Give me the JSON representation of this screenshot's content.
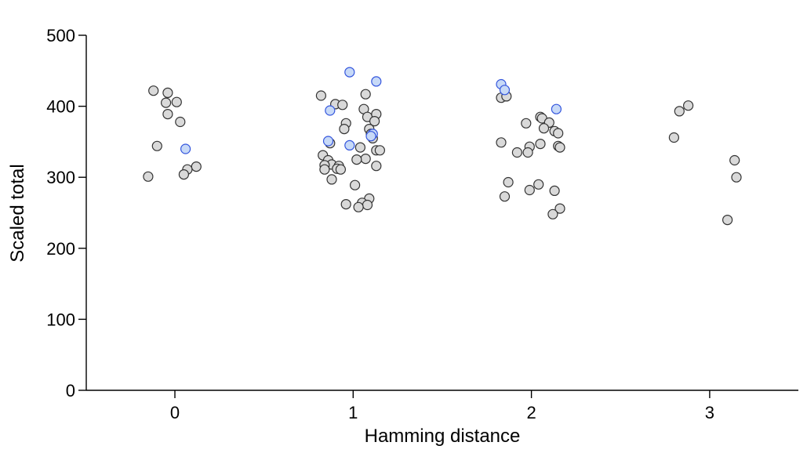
{
  "chart_data": {
    "type": "scatter",
    "title": "",
    "xlabel": "Hamming distance",
    "ylabel": "Scaled total",
    "xlim": [
      -0.6,
      3.5
    ],
    "ylim": [
      0,
      500
    ],
    "x_ticks": [
      0,
      1,
      2,
      3
    ],
    "y_ticks": [
      0,
      100,
      200,
      300,
      400,
      500
    ],
    "grid": false,
    "legend": "none",
    "colors": {
      "gray": "#d9d9d9",
      "blue": "#c7d9f7",
      "blue_edge": "#3355dd",
      "edge": "#333333"
    },
    "series": [
      {
        "color": "gray",
        "points": [
          [
            -0.12,
            422
          ],
          [
            -0.04,
            419
          ],
          [
            -0.05,
            405
          ],
          [
            0.01,
            406
          ],
          [
            -0.04,
            389
          ],
          [
            0.03,
            378
          ],
          [
            -0.1,
            344
          ],
          [
            0.12,
            315
          ],
          [
            0.07,
            311
          ],
          [
            0.05,
            304
          ],
          [
            -0.15,
            301
          ],
          [
            0.82,
            415
          ],
          [
            0.9,
            403
          ],
          [
            0.94,
            402
          ],
          [
            1.07,
            417
          ],
          [
            1.06,
            396
          ],
          [
            1.08,
            385
          ],
          [
            1.13,
            389
          ],
          [
            1.12,
            379
          ],
          [
            0.96,
            376
          ],
          [
            0.95,
            368
          ],
          [
            1.09,
            368
          ],
          [
            1.1,
            361
          ],
          [
            1.11,
            355
          ],
          [
            0.87,
            348
          ],
          [
            1.04,
            342
          ],
          [
            1.13,
            338
          ],
          [
            1.15,
            338
          ],
          [
            0.83,
            331
          ],
          [
            1.07,
            326
          ],
          [
            1.02,
            325
          ],
          [
            0.86,
            324
          ],
          [
            0.88,
            318
          ],
          [
            0.84,
            317
          ],
          [
            0.92,
            316
          ],
          [
            0.91,
            312
          ],
          [
            0.93,
            311
          ],
          [
            0.84,
            311
          ],
          [
            1.13,
            316
          ],
          [
            0.88,
            297
          ],
          [
            1.01,
            289
          ],
          [
            1.09,
            270
          ],
          [
            1.05,
            264
          ],
          [
            0.96,
            262
          ],
          [
            1.08,
            261
          ],
          [
            1.03,
            258
          ],
          [
            1.83,
            412
          ],
          [
            1.86,
            414
          ],
          [
            1.97,
            376
          ],
          [
            2.05,
            385
          ],
          [
            2.06,
            383
          ],
          [
            2.1,
            377
          ],
          [
            2.07,
            369
          ],
          [
            2.13,
            365
          ],
          [
            2.15,
            362
          ],
          [
            1.83,
            349
          ],
          [
            2.05,
            347
          ],
          [
            2.15,
            344
          ],
          [
            2.16,
            342
          ],
          [
            1.99,
            343
          ],
          [
            1.92,
            335
          ],
          [
            1.98,
            335
          ],
          [
            1.87,
            293
          ],
          [
            2.04,
            290
          ],
          [
            1.99,
            282
          ],
          [
            2.13,
            281
          ],
          [
            1.85,
            273
          ],
          [
            2.16,
            256
          ],
          [
            2.12,
            248
          ],
          [
            2.88,
            401
          ],
          [
            2.83,
            393
          ],
          [
            2.8,
            356
          ],
          [
            3.14,
            324
          ],
          [
            3.15,
            300
          ],
          [
            3.1,
            240
          ]
        ]
      },
      {
        "color": "blue",
        "points": [
          [
            0.06,
            340
          ],
          [
            0.98,
            448
          ],
          [
            1.13,
            435
          ],
          [
            0.87,
            394
          ],
          [
            1.11,
            361
          ],
          [
            1.1,
            358
          ],
          [
            0.86,
            351
          ],
          [
            0.98,
            345
          ],
          [
            1.83,
            431
          ],
          [
            1.85,
            423
          ],
          [
            2.14,
            396
          ]
        ]
      }
    ]
  }
}
